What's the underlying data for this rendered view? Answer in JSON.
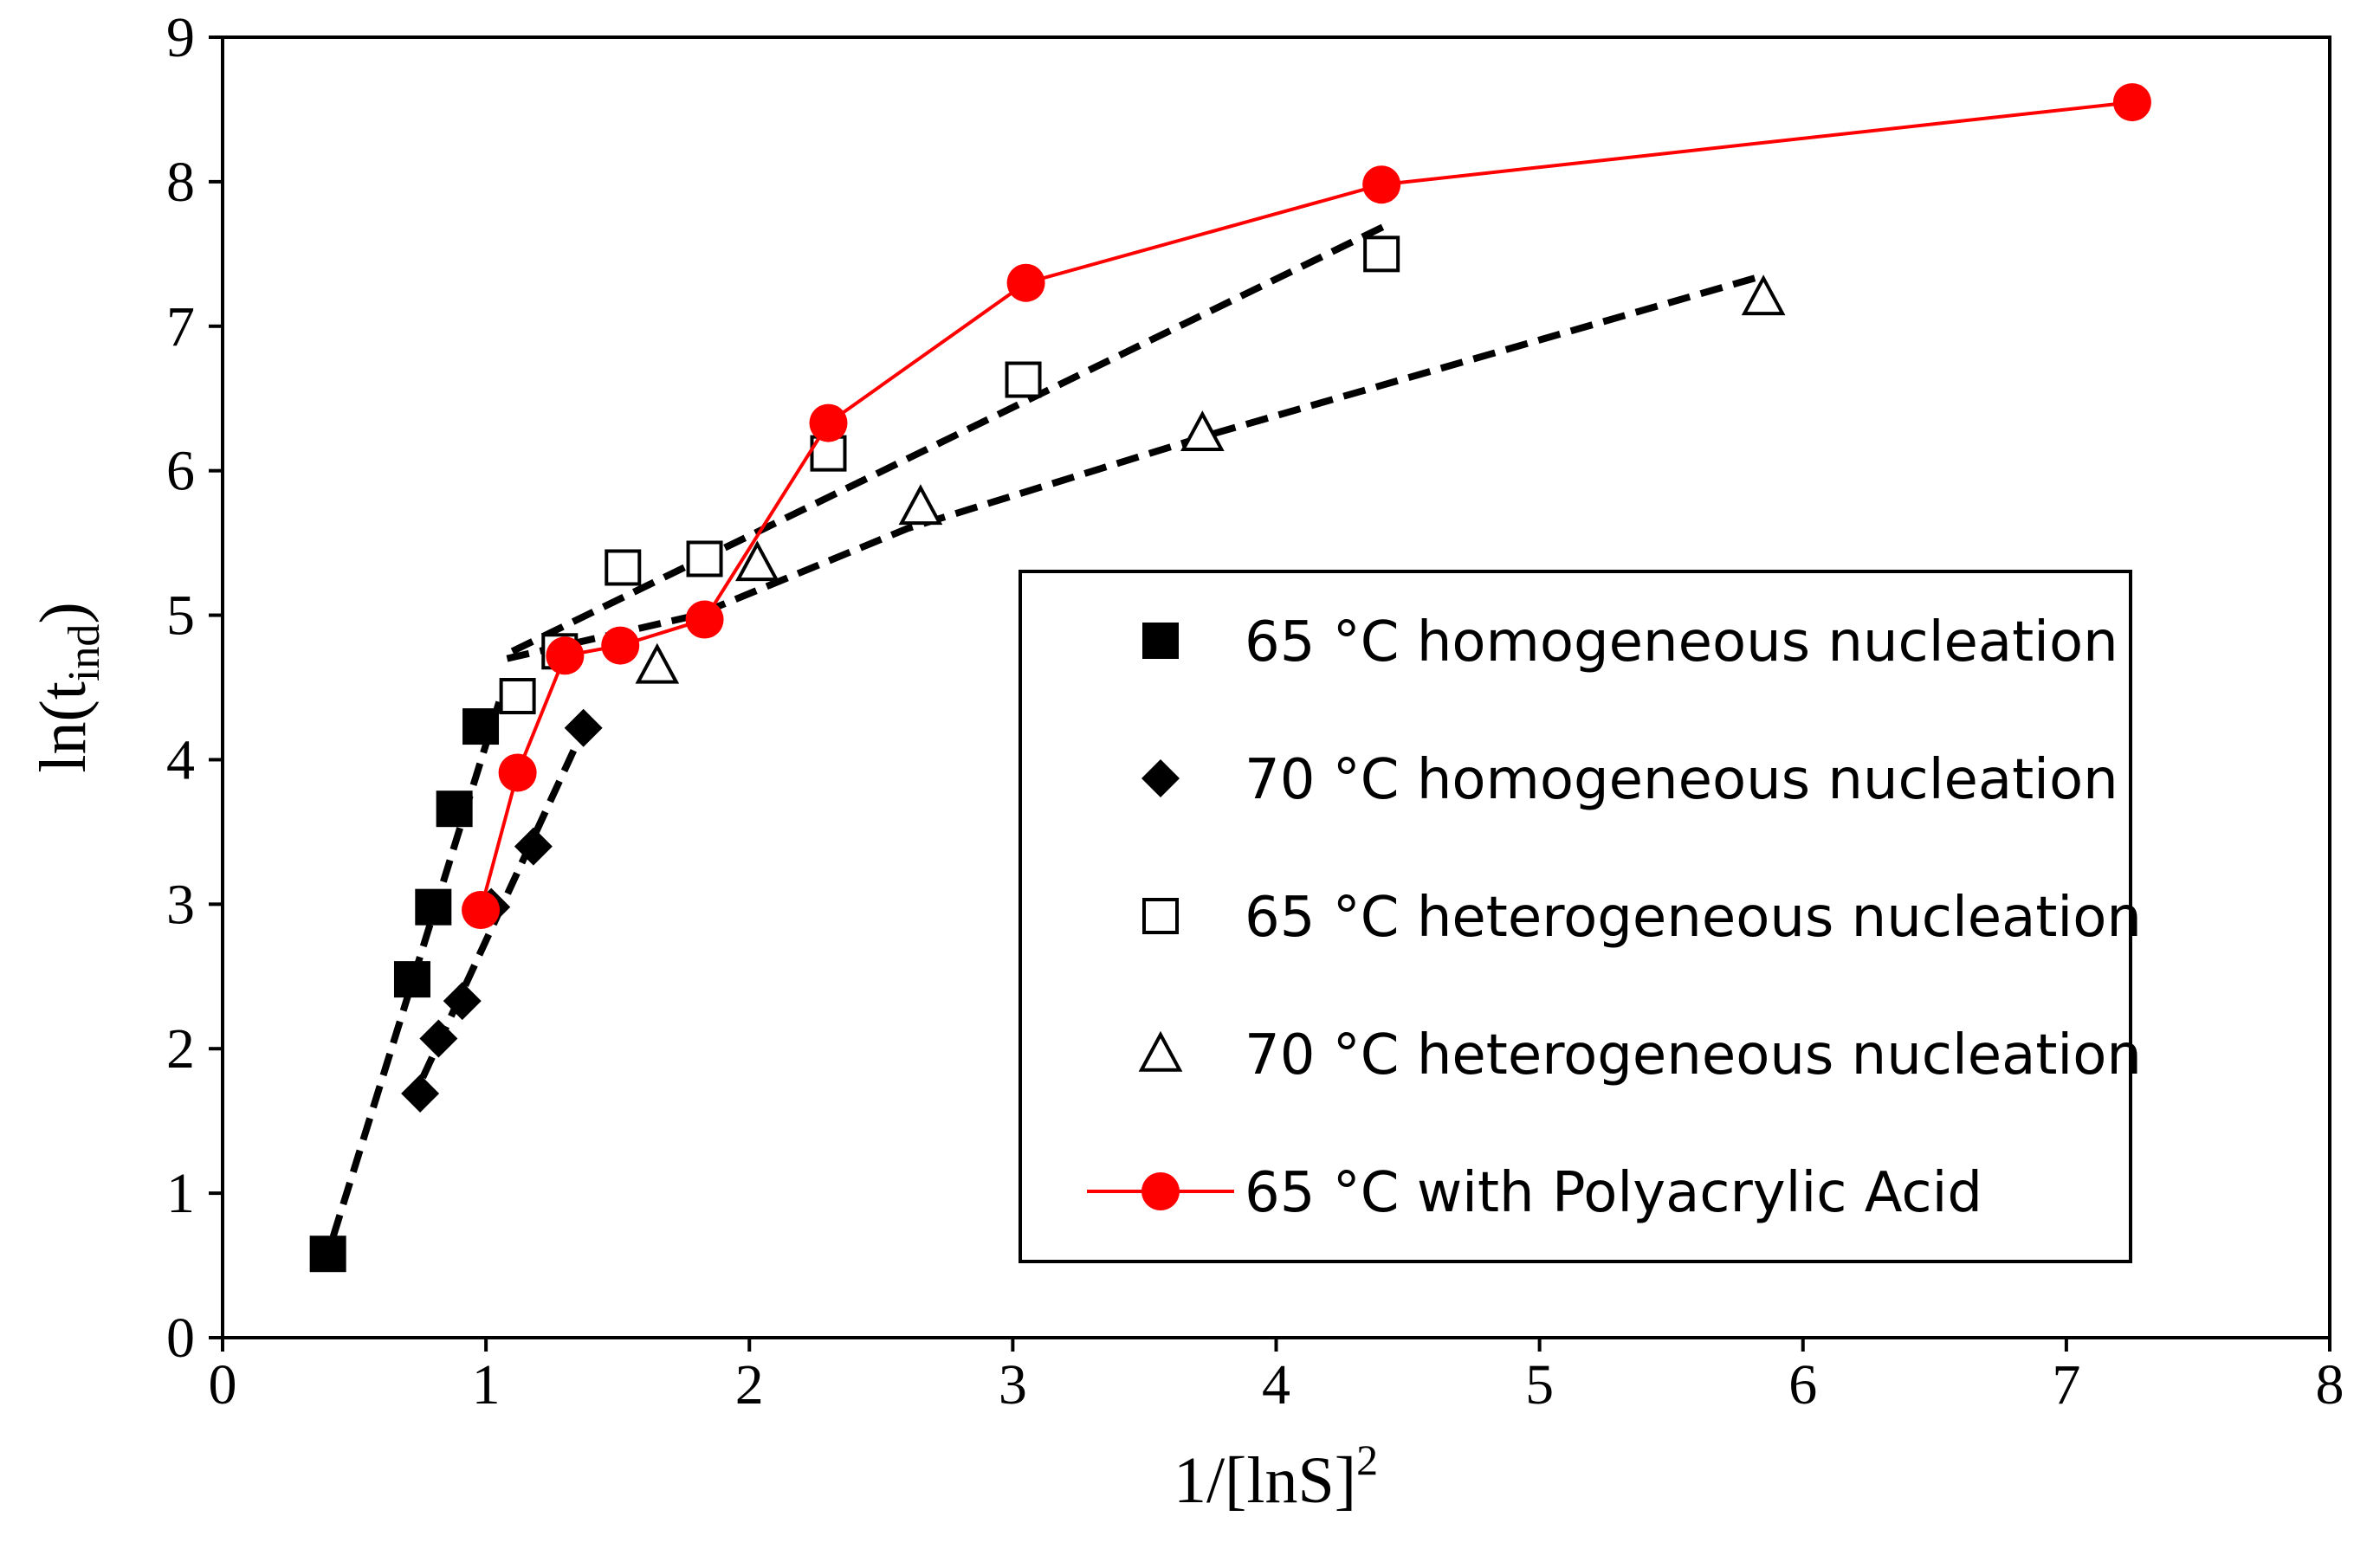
{
  "chart_data": {
    "type": "scatter",
    "title": "",
    "xlabel": {
      "main": "1/[lnS]",
      "sup": "2"
    },
    "ylabel": {
      "main": "ln(t",
      "sub": "ind",
      "close": ")"
    },
    "xlim": [
      0,
      8
    ],
    "ylim": [
      0,
      9
    ],
    "xticks": [
      0,
      1,
      2,
      3,
      4,
      5,
      6,
      7,
      8
    ],
    "yticks": [
      0,
      1,
      2,
      3,
      4,
      5,
      6,
      7,
      8,
      9
    ],
    "grid": false,
    "legend_position": "right",
    "series": [
      {
        "name": "65 °C homogeneous nucleation",
        "marker": "square-filled",
        "color": "#000000",
        "line": "none",
        "points": [
          [
            0.4,
            0.58
          ],
          [
            0.72,
            2.48
          ],
          [
            0.8,
            2.98
          ],
          [
            0.88,
            3.66
          ],
          [
            0.98,
            4.23
          ]
        ]
      },
      {
        "name": "70 °C homogeneous nucleation",
        "marker": "diamond-filled",
        "color": "#000000",
        "line": "none",
        "points": [
          [
            0.75,
            1.69
          ],
          [
            0.82,
            2.07
          ],
          [
            0.91,
            2.33
          ],
          [
            1.02,
            2.98
          ],
          [
            1.18,
            3.4
          ],
          [
            1.37,
            4.22
          ]
        ]
      },
      {
        "name": "65 °C heterogeneous nucleation",
        "marker": "square-open",
        "color": "#000000",
        "line": "none",
        "points": [
          [
            1.12,
            4.44
          ],
          [
            1.28,
            4.75
          ],
          [
            1.52,
            5.33
          ],
          [
            1.83,
            5.39
          ],
          [
            2.3,
            6.12
          ],
          [
            3.04,
            6.63
          ],
          [
            4.4,
            7.5
          ]
        ]
      },
      {
        "name": "70 °C heterogeneous nucleation",
        "marker": "triangle-open",
        "color": "#000000",
        "line": "none",
        "points": [
          [
            1.65,
            4.65
          ],
          [
            2.03,
            5.36
          ],
          [
            2.65,
            5.75
          ],
          [
            3.72,
            6.26
          ],
          [
            5.85,
            7.2
          ]
        ]
      },
      {
        "name": "65 °C with Polyacrylic Acid",
        "marker": "circle-filled",
        "color": "#ff0000",
        "line": "solid",
        "points": [
          [
            0.98,
            2.96
          ],
          [
            1.12,
            3.91
          ],
          [
            1.3,
            4.72
          ],
          [
            1.51,
            4.79
          ],
          [
            1.83,
            4.97
          ],
          [
            2.3,
            6.33
          ],
          [
            3.05,
            7.3
          ],
          [
            4.4,
            7.98
          ],
          [
            7.25,
            8.55
          ]
        ]
      }
    ],
    "trendlines": [
      {
        "name": "fit-65-homogeneous",
        "color": "#000000",
        "style": "dashed",
        "points": [
          [
            0.42,
            0.7
          ],
          [
            1.05,
            4.4
          ]
        ]
      },
      {
        "name": "fit-70-homogeneous",
        "color": "#000000",
        "style": "dashed",
        "points": [
          [
            0.76,
            1.8
          ],
          [
            1.38,
            4.25
          ]
        ]
      },
      {
        "name": "fit-65-heterogeneous",
        "color": "#000000",
        "style": "dashed",
        "points": [
          [
            1.1,
            4.75
          ],
          [
            4.42,
            7.7
          ]
        ]
      },
      {
        "name": "fit-70-heterogeneous",
        "color": "#000000",
        "style": "dashed",
        "points": [
          [
            1.08,
            4.7
          ],
          [
            1.8,
            5.0
          ],
          [
            2.6,
            5.6
          ],
          [
            3.75,
            6.25
          ],
          [
            5.85,
            7.35
          ]
        ]
      }
    ]
  }
}
